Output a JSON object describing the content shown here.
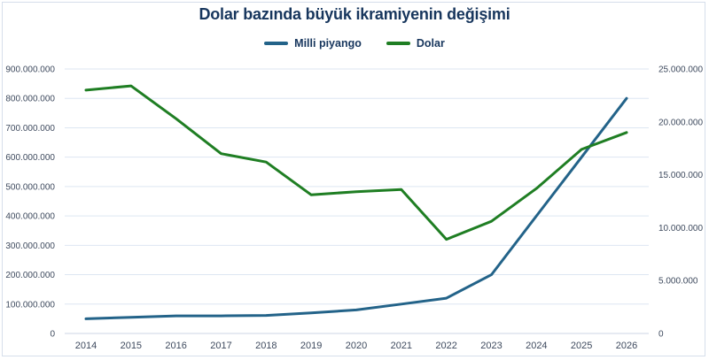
{
  "window": {
    "background": "#ffffff",
    "border_color": "#d6deeb"
  },
  "chart_data": {
    "type": "line",
    "title": "Dolar bazında büyük ikramiyenin değişimi",
    "x": [
      "2014",
      "2015",
      "2016",
      "2017",
      "2018",
      "2019",
      "2020",
      "2021",
      "2022",
      "2023",
      "2024",
      "2025",
      "2026"
    ],
    "series": [
      {
        "name": "Milli piyango",
        "axis": "left",
        "color": "#236389",
        "values": [
          50000000,
          55000000,
          60000000,
          60000000,
          61500000,
          70000000,
          80000000,
          100000000,
          120000000,
          200000000,
          400000000,
          600000000,
          800000000
        ]
      },
      {
        "name": "Dolar",
        "axis": "right",
        "color": "#1f7e23",
        "values": [
          23000000,
          23400000,
          20300000,
          17000000,
          16200000,
          13100000,
          13400000,
          13600000,
          8900000,
          10600000,
          13700000,
          17400000,
          19000000
        ]
      }
    ],
    "left_axis": {
      "min": 0,
      "max": 900000000,
      "tick_step": 100000000,
      "tick_labels": [
        "0",
        "100.000.000",
        "200.000.000",
        "300.000.000",
        "400.000.000",
        "500.000.000",
        "600.000.000",
        "700.000.000",
        "800.000.000",
        "900.000.000"
      ]
    },
    "right_axis": {
      "min": 0,
      "max": 25000000,
      "tick_step": 5000000,
      "tick_labels": [
        "0",
        "5.000.000",
        "10.000.000",
        "15.000.000",
        "20.000.000",
        "25.000.000"
      ]
    },
    "grid": true,
    "legend_position": "top"
  },
  "legend": {
    "items": [
      {
        "label": "Milli piyango",
        "color": "#236389"
      },
      {
        "label": "Dolar",
        "color": "#1f7e23"
      }
    ]
  },
  "colors": {
    "title_text": "#17365d",
    "axis_text": "#3e4a5e",
    "gridline": "#dde6f2",
    "baseline": "#ccd6e4"
  }
}
